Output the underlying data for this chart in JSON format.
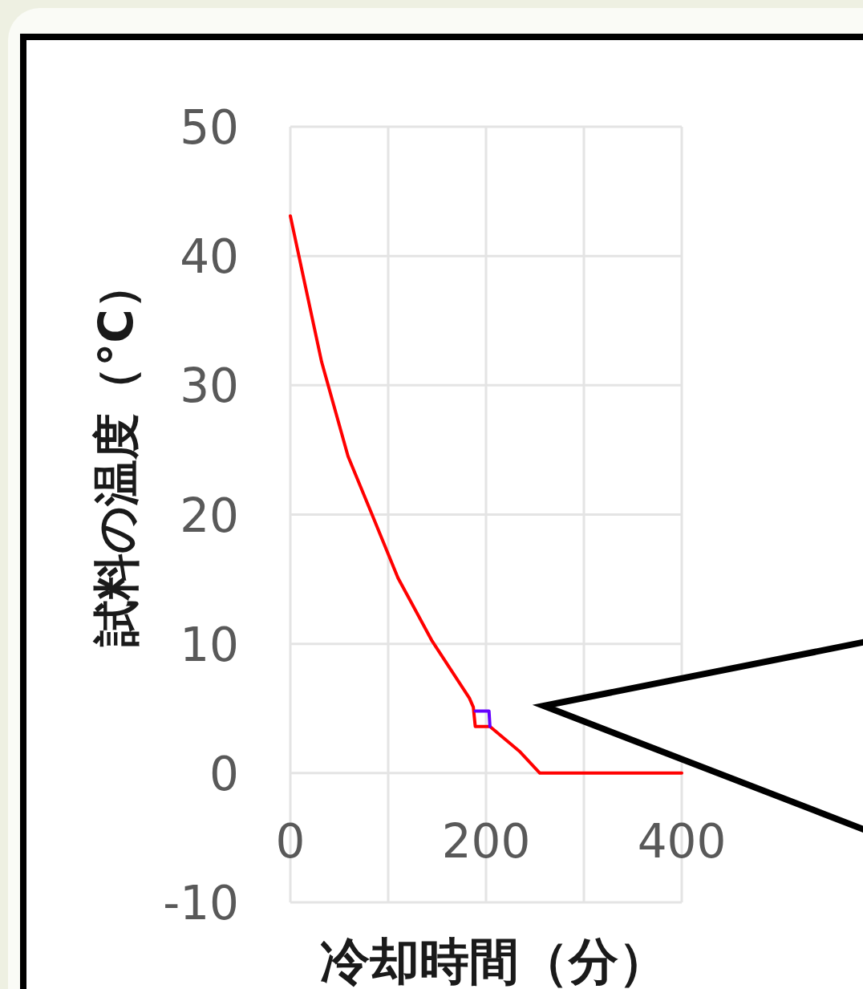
{
  "chart_data": {
    "type": "line",
    "xlabel": "冷却時間（分）",
    "ylabel": "試料の温度（°C）",
    "xlim": [
      0,
      400
    ],
    "ylim": [
      -10,
      50
    ],
    "xticks": [
      0,
      {
        "value": 100,
        "label": null
      },
      200,
      {
        "value": 300,
        "label": null
      },
      400
    ],
    "yticks": [
      -10,
      0,
      10,
      20,
      30,
      40,
      50
    ],
    "grid": true,
    "line_style": "solid",
    "series": [
      {
        "color": "#ff0000",
        "x": [
          0,
          13,
          32,
          59,
          83,
          110,
          145,
          183,
          187,
          189,
          204,
          234,
          255,
          400
        ],
        "values": [
          43.1,
          38.5,
          31.8,
          24.5,
          20.1,
          15.1,
          10.2,
          5.8,
          5.1,
          3.6,
          3.6,
          1.7,
          0,
          0
        ]
      },
      {
        "color": "#6600ff",
        "x": [
          189,
          203,
          204
        ],
        "values": [
          4.8,
          4.8,
          3.6
        ]
      }
    ]
  }
}
